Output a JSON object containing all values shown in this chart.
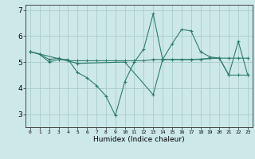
{
  "xlabel": "Humidex (Indice chaleur)",
  "bg_color": "#cde8e8",
  "line_color": "#2e7d6e",
  "grid_color": "#a8cccc",
  "line1_x": [
    0,
    1,
    2,
    3,
    4,
    5,
    6,
    7,
    8,
    9,
    10,
    11,
    12,
    13,
    14,
    15,
    16,
    17,
    18,
    19,
    20,
    21,
    22,
    23
  ],
  "line1_y": [
    5.4,
    5.3,
    5.0,
    5.1,
    5.1,
    4.6,
    4.4,
    4.1,
    3.7,
    2.95,
    4.25,
    5.0,
    5.5,
    6.85,
    5.1,
    5.7,
    6.25,
    6.2,
    5.4,
    5.2,
    5.15,
    4.5,
    5.8,
    4.5
  ],
  "line2_x": [
    0,
    1,
    2,
    3,
    4,
    5,
    6,
    7,
    8,
    9,
    10,
    11,
    12,
    13,
    14,
    15,
    16,
    17,
    18,
    19,
    20,
    21,
    22,
    23
  ],
  "line2_y": [
    5.4,
    5.3,
    5.1,
    5.15,
    5.05,
    5.05,
    5.05,
    5.05,
    5.05,
    5.05,
    5.05,
    5.05,
    5.05,
    5.1,
    5.1,
    5.1,
    5.1,
    5.1,
    5.1,
    5.15,
    5.15,
    5.15,
    5.15,
    5.15
  ],
  "line3_x": [
    0,
    5,
    10,
    13,
    14,
    17,
    20,
    21,
    22,
    23
  ],
  "line3_y": [
    5.4,
    4.95,
    5.0,
    3.75,
    5.1,
    5.1,
    5.15,
    4.5,
    4.5,
    4.5
  ],
  "ylim": [
    2.5,
    7.2
  ],
  "xlim": [
    -0.5,
    23.5
  ],
  "yticks": [
    3,
    4,
    5,
    6,
    7
  ],
  "xticks": [
    0,
    1,
    2,
    3,
    4,
    5,
    6,
    7,
    8,
    9,
    10,
    11,
    12,
    13,
    14,
    15,
    16,
    17,
    18,
    19,
    20,
    21,
    22,
    23
  ],
  "xlabel_fontsize": 6.5,
  "ytick_fontsize": 6.5,
  "xtick_fontsize": 4.5
}
